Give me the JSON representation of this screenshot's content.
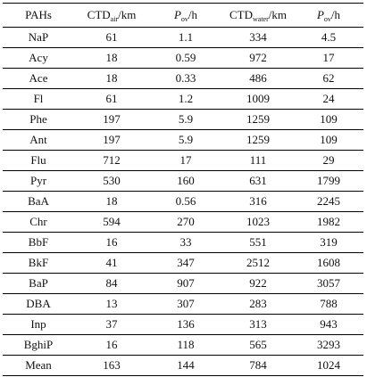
{
  "table": {
    "headers": {
      "col0": "PAHs",
      "col1": {
        "main": "CTD",
        "sub": "air",
        "unit": "/km"
      },
      "col2": {
        "main": "P",
        "sub": "ov",
        "unit": "/h"
      },
      "col3": {
        "main": "CTD",
        "sub": "water",
        "unit": "/km"
      },
      "col4": {
        "main": "P",
        "sub": "ov",
        "unit": "/h"
      }
    },
    "rows": [
      [
        "NaP",
        "61",
        "1.1",
        "334",
        "4.5"
      ],
      [
        "Acy",
        "18",
        "0.59",
        "972",
        "17"
      ],
      [
        "Ace",
        "18",
        "0.33",
        "486",
        "62"
      ],
      [
        "Fl",
        "61",
        "1.2",
        "1009",
        "24"
      ],
      [
        "Phe",
        "197",
        "5.9",
        "1259",
        "109"
      ],
      [
        "Ant",
        "197",
        "5.9",
        "1259",
        "109"
      ],
      [
        "Flu",
        "712",
        "17",
        "111",
        "29"
      ],
      [
        "Pyr",
        "530",
        "160",
        "631",
        "1799"
      ],
      [
        "BaA",
        "18",
        "0.56",
        "316",
        "2245"
      ],
      [
        "Chr",
        "594",
        "270",
        "1023",
        "1982"
      ],
      [
        "BbF",
        "16",
        "33",
        "551",
        "319"
      ],
      [
        "BkF",
        "41",
        "347",
        "2512",
        "1608"
      ],
      [
        "BaP",
        "84",
        "907",
        "922",
        "3057"
      ],
      [
        "DBA",
        "13",
        "307",
        "283",
        "788"
      ],
      [
        "Inp",
        "37",
        "136",
        "313",
        "943"
      ],
      [
        "BghiP",
        "16",
        "118",
        "565",
        "3293"
      ],
      [
        "Mean",
        "163",
        "144",
        "784",
        "1024"
      ]
    ]
  }
}
